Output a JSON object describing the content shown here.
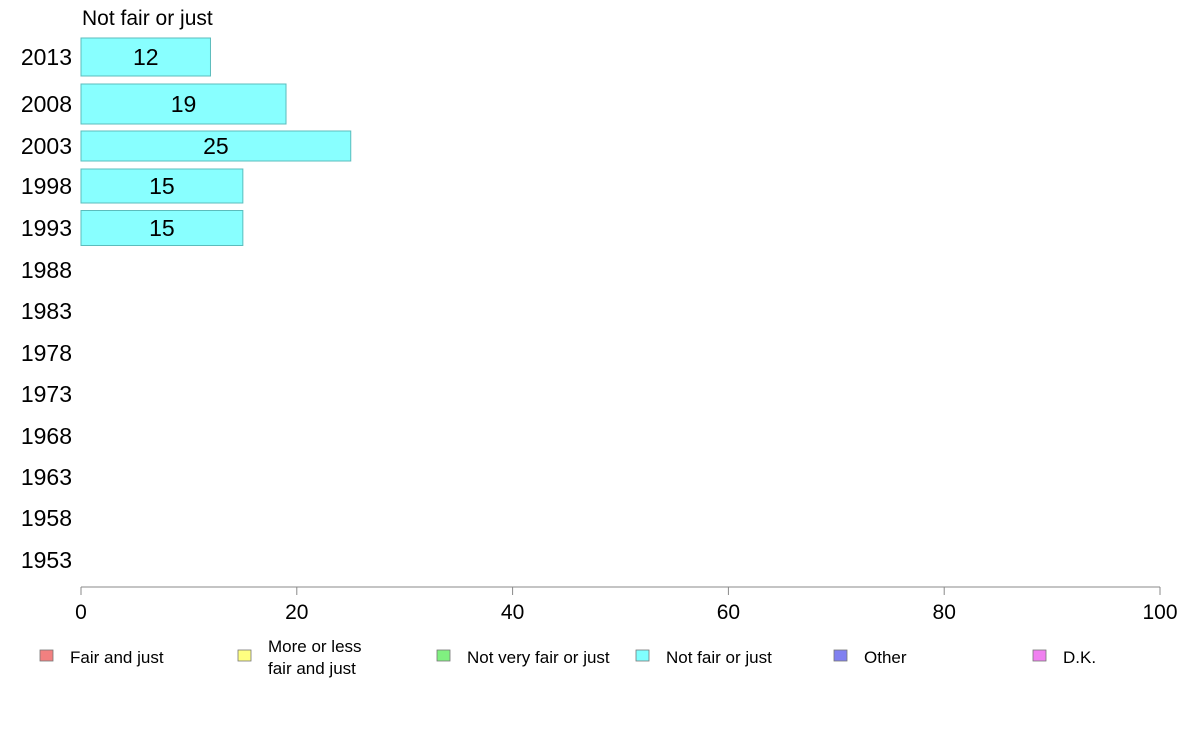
{
  "chart_data": {
    "type": "bar",
    "title": "Not fair or just",
    "orientation": "horizontal",
    "categories": [
      "2013",
      "2008",
      "2003",
      "1998",
      "1993",
      "1988",
      "1983",
      "1978",
      "1973",
      "1968",
      "1963",
      "1958",
      "1953"
    ],
    "series": [
      {
        "name": "Not fair or just",
        "values": [
          12,
          19,
          25,
          15,
          15,
          null,
          null,
          null,
          null,
          null,
          null,
          null,
          null
        ]
      }
    ],
    "data_labels": [
      "12",
      "19",
      "25",
      "15",
      "15"
    ],
    "xlim": [
      0,
      100
    ],
    "xticks": [
      "0",
      "20",
      "40",
      "60",
      "80",
      "100"
    ],
    "grid": false,
    "legend_position": "bottom",
    "legend": [
      {
        "label": "Fair and just",
        "color": "#f28080"
      },
      {
        "label": "More or less fair and just",
        "color": "#ffff80"
      },
      {
        "label": "Not very fair or just",
        "color": "#80f080"
      },
      {
        "label": "Not fair or just",
        "color": "#80ffff"
      },
      {
        "label": "Other",
        "color": "#8080f0"
      },
      {
        "label": "D.K.",
        "color": "#f080f0"
      }
    ],
    "bar_color": "#88ffff",
    "bar_border": "#5bbcbc",
    "axis_color": "#888888"
  }
}
